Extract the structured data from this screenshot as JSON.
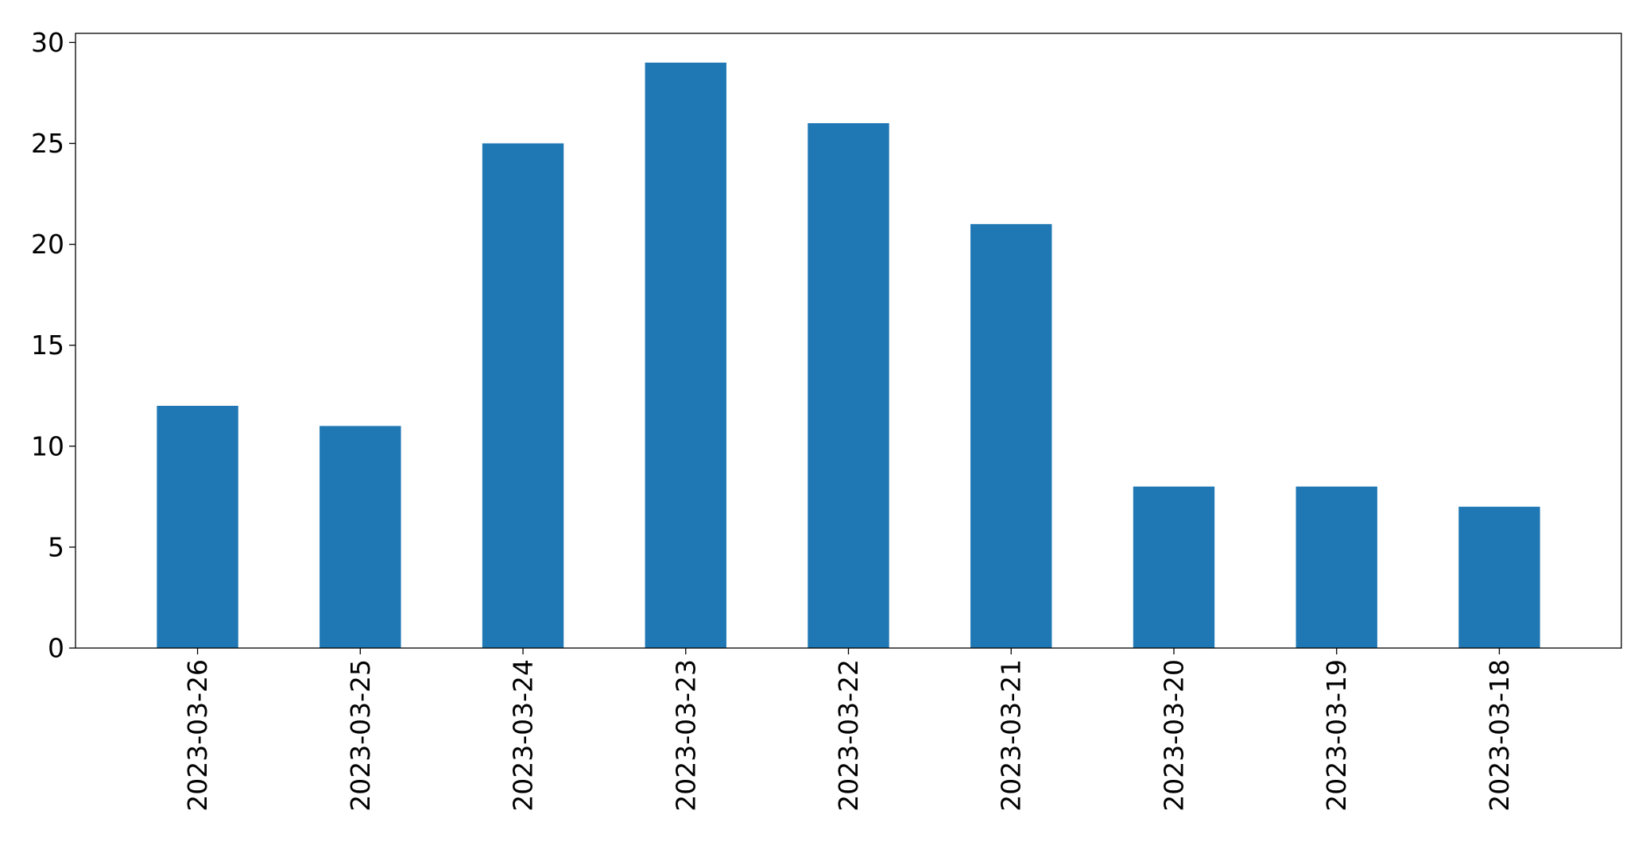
{
  "chart_data": {
    "type": "bar",
    "categories": [
      "2023-03-26",
      "2023-03-25",
      "2023-03-24",
      "2023-03-23",
      "2023-03-22",
      "2023-03-21",
      "2023-03-20",
      "2023-03-19",
      "2023-03-18"
    ],
    "values": [
      12,
      11,
      25,
      29,
      26,
      21,
      8,
      8,
      7
    ],
    "ylim": [
      0,
      30.45
    ],
    "yticks": [
      0,
      5,
      10,
      15,
      20,
      25,
      30
    ],
    "bar_color": "#1f77b4",
    "grid": false,
    "legend": false
  }
}
